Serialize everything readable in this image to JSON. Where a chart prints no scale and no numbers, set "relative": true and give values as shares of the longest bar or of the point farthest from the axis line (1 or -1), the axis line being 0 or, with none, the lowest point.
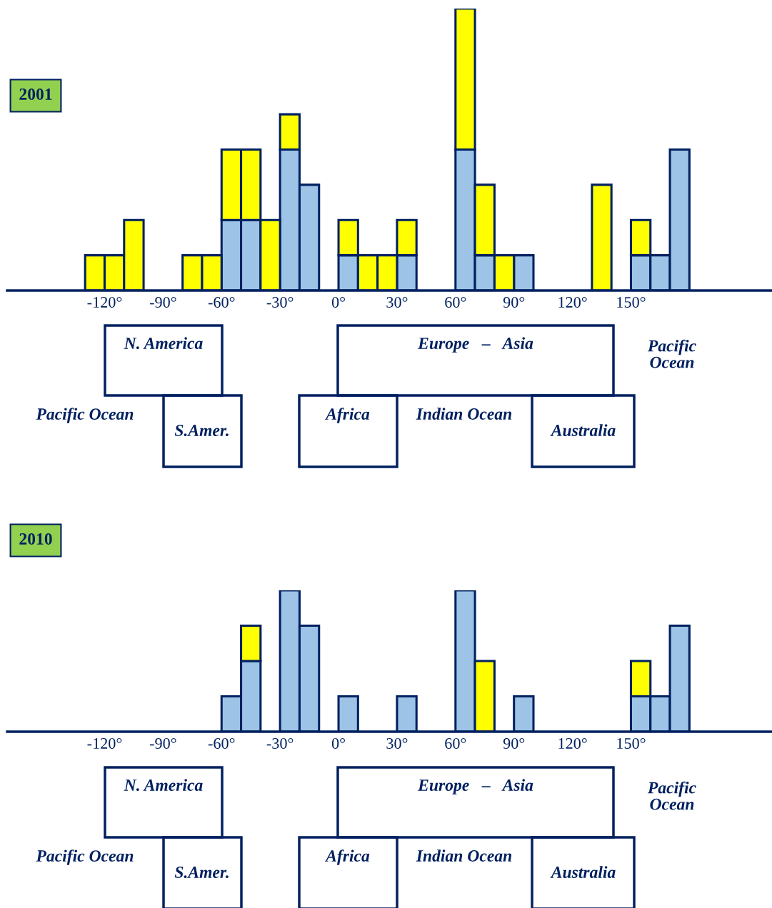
{
  "chart_data": [
    {
      "type": "bar",
      "title": "2001",
      "stacked": true,
      "relative": true,
      "grid": false,
      "x": [
        -125,
        -115,
        -105,
        -75,
        -65,
        -55,
        -45,
        -35,
        -25,
        -15,
        5,
        15,
        25,
        35,
        65,
        75,
        85,
        95,
        135,
        155,
        165,
        175
      ],
      "series": [
        {
          "color": "#9dc3e6",
          "values": [
            0,
            0,
            0,
            0,
            0,
            0.25,
            0.25,
            0,
            0.5,
            0.375,
            0.125,
            0,
            0,
            0.125,
            0.5,
            0.125,
            0,
            0.125,
            0,
            0.125,
            0.125,
            0.5
          ]
        },
        {
          "color": "#ffff00",
          "values": [
            0.125,
            0.125,
            0.25,
            0.125,
            0.125,
            0.25,
            0.25,
            0.25,
            0.125,
            0,
            0.125,
            0.125,
            0.125,
            0.125,
            0.5,
            0.25,
            0.125,
            0,
            0.375,
            0.125,
            0,
            0
          ]
        }
      ],
      "xlim": [
        -170,
        222
      ],
      "xticks": [
        {
          "value": -120,
          "label": "-120°"
        },
        {
          "value": -90,
          "label": "-90°"
        },
        {
          "value": -60,
          "label": "-60°"
        },
        {
          "value": -30,
          "label": "-30°"
        },
        {
          "value": 0,
          "label": "0°"
        },
        {
          "value": 30,
          "label": "30°"
        },
        {
          "value": 60,
          "label": "60°"
        },
        {
          "value": 90,
          "label": "90°"
        },
        {
          "value": 120,
          "label": "120°"
        },
        {
          "value": 150,
          "label": "150°"
        }
      ],
      "tick_labels": "x",
      "annotations": [
        "N. America",
        "Europe   –   Asia",
        "Pacific\nOcean",
        "Pacific Ocean",
        "S.Amer.",
        "Africa",
        "Indian Ocean",
        "Australia"
      ]
    },
    {
      "type": "bar",
      "title": "2010",
      "stacked": true,
      "relative": true,
      "grid": false,
      "x": [
        -55,
        -45,
        -25,
        -15,
        5,
        35,
        65,
        75,
        95,
        155,
        165,
        175
      ],
      "series": [
        {
          "color": "#9dc3e6",
          "values": [
            0.25,
            0.5,
            1,
            0.75,
            0.25,
            0.25,
            1,
            0,
            0.25,
            0.25,
            0.25,
            0.75
          ]
        },
        {
          "color": "#ffff00",
          "values": [
            0,
            0.25,
            0,
            0,
            0,
            0,
            0,
            0.5,
            0,
            0.25,
            0,
            0
          ]
        }
      ],
      "xlim": [
        -170,
        222
      ],
      "xticks": [
        {
          "value": -120,
          "label": "-120°"
        },
        {
          "value": -90,
          "label": "-90°"
        },
        {
          "value": -60,
          "label": "-60°"
        },
        {
          "value": -30,
          "label": "-30°"
        },
        {
          "value": 0,
          "label": "0°"
        },
        {
          "value": 30,
          "label": "30°"
        },
        {
          "value": 60,
          "label": "60°"
        },
        {
          "value": 90,
          "label": "90°"
        },
        {
          "value": 120,
          "label": "120°"
        },
        {
          "value": 150,
          "label": "150°"
        }
      ],
      "tick_labels": "x",
      "annotations": [
        "N. America",
        "Europe   –   Asia",
        "Pacific\nOcean",
        "Pacific Ocean",
        "S.Amer.",
        "Africa",
        "Indian Ocean",
        "Australia"
      ]
    }
  ]
}
